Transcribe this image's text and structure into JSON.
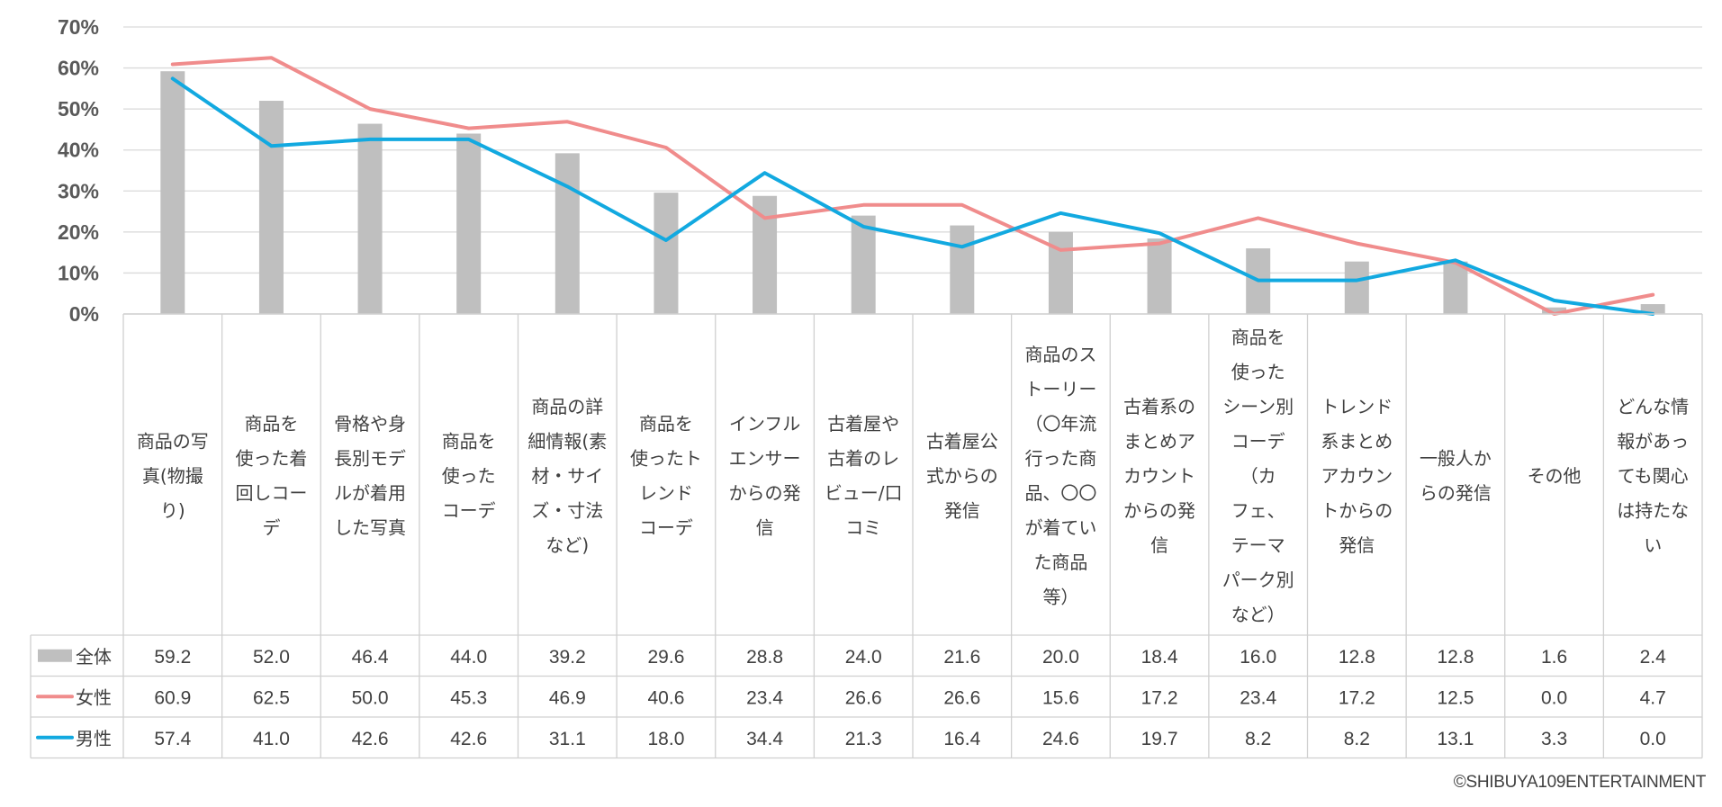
{
  "chart_data": {
    "type": "bar+line",
    "title": "",
    "ylim": [
      0,
      70
    ],
    "yticks": [
      "70%",
      "60%",
      "50%",
      "40%",
      "30%",
      "20%",
      "10%",
      "0%"
    ],
    "categories": [
      "商品の写真(物撮り)",
      "商品を使った着回しコーデ",
      "骨格や身長別モデルが着用した写真",
      "商品を使ったコーデ",
      "商品の詳細情報(素材・サイズ・寸法など)",
      "商品を使ったトレンドコーデ",
      "インフルエンサーからの発信",
      "古着屋や古着のレビュー/口コミ",
      "古着屋公式からの発信",
      "商品のストーリー（〇年流行った商品、〇〇が着ていた商品等）",
      "古着系のまとめアカウントからの発信",
      "商品を使ったシーン別コーデ（カフェ、テーマパーク別など）",
      "トレンド系まとめアカウントからの発信",
      "一般人からの発信",
      "その他",
      "どんな情報があっても関心は持たない"
    ],
    "category_lines": [
      [
        "商品の写",
        "真(物撮",
        "り)"
      ],
      [
        "商品を",
        "使った着",
        "回しコー",
        "デ"
      ],
      [
        "骨格や身",
        "長別モデ",
        "ルが着用",
        "した写真"
      ],
      [
        "商品を",
        "使った",
        "コーデ"
      ],
      [
        "商品の詳",
        "細情報(素",
        "材・サイ",
        "ズ・寸法",
        "など)"
      ],
      [
        "商品を",
        "使ったト",
        "レンド",
        "コーデ"
      ],
      [
        "インフル",
        "エンサー",
        "からの発",
        "信"
      ],
      [
        "古着屋や",
        "古着のレ",
        "ビュー/口",
        "コミ"
      ],
      [
        "古着屋公",
        "式からの",
        "発信"
      ],
      [
        "商品のス",
        "トーリー",
        "（〇年流",
        "行った商",
        "品、〇〇",
        "が着てい",
        "た商品",
        "等）"
      ],
      [
        "古着系の",
        "まとめア",
        "カウント",
        "からの発",
        "信"
      ],
      [
        "商品を",
        "使った",
        "シーン別",
        "コーデ",
        "（カ",
        "フェ、",
        "テーマ",
        "パーク別",
        "など）"
      ],
      [
        "トレンド",
        "系まとめ",
        "アカウン",
        "トからの",
        "発信"
      ],
      [
        "一般人か",
        "らの発信"
      ],
      [
        "その他"
      ],
      [
        "どんな情",
        "報があっ",
        "ても関心",
        "は持たな",
        "い"
      ]
    ],
    "series": [
      {
        "name": "全体",
        "type": "bar",
        "color": "#bfbfbf",
        "values": [
          59.2,
          52.0,
          46.4,
          44.0,
          39.2,
          29.6,
          28.8,
          24.0,
          21.6,
          20.0,
          18.4,
          16.0,
          12.8,
          12.8,
          1.6,
          2.4
        ],
        "labels": [
          "59.2",
          "52.0",
          "46.4",
          "44.0",
          "39.2",
          "29.6",
          "28.8",
          "24.0",
          "21.6",
          "20.0",
          "18.4",
          "16.0",
          "12.8",
          "12.8",
          "1.6",
          "2.4"
        ]
      },
      {
        "name": "女性",
        "type": "line",
        "color": "#f08c8c",
        "values": [
          60.9,
          62.5,
          50.0,
          45.3,
          46.9,
          40.6,
          23.4,
          26.6,
          26.6,
          15.6,
          17.2,
          23.4,
          17.2,
          12.5,
          0.0,
          4.7
        ],
        "labels": [
          "60.9",
          "62.5",
          "50.0",
          "45.3",
          "46.9",
          "40.6",
          "23.4",
          "26.6",
          "26.6",
          "15.6",
          "17.2",
          "23.4",
          "17.2",
          "12.5",
          "0.0",
          "4.7"
        ]
      },
      {
        "name": "男性",
        "type": "line",
        "color": "#12a9e0",
        "values": [
          57.4,
          41.0,
          42.6,
          42.6,
          31.1,
          18.0,
          34.4,
          21.3,
          16.4,
          24.6,
          19.7,
          8.2,
          8.2,
          13.1,
          3.3,
          0.0
        ],
        "labels": [
          "57.4",
          "41.0",
          "42.6",
          "42.6",
          "31.1",
          "18.0",
          "34.4",
          "21.3",
          "16.4",
          "24.6",
          "19.7",
          "8.2",
          "8.2",
          "13.1",
          "3.3",
          "0.0"
        ]
      }
    ],
    "grid": true,
    "legend": "data-table-left"
  },
  "footer": {
    "copyright": "©SHIBUYA109ENTERTAINMENT"
  }
}
